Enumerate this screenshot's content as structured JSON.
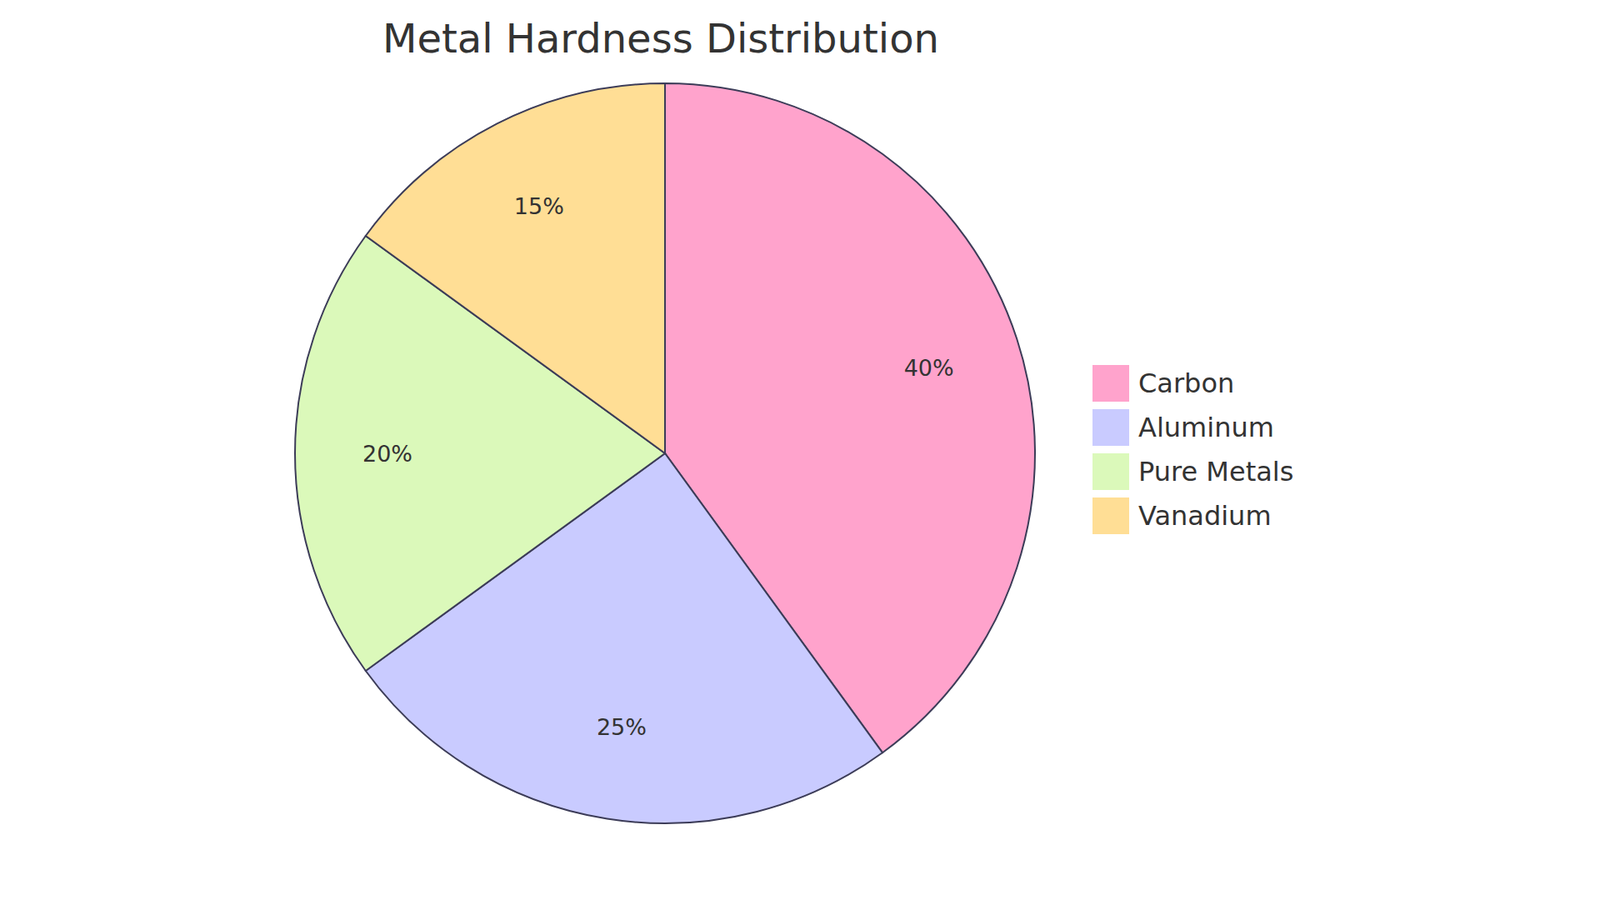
{
  "chart_data": {
    "type": "pie",
    "title": "Metal Hardness Distribution",
    "categories": [
      "Carbon",
      "Aluminum",
      "Pure Metals",
      "Vanadium"
    ],
    "values": [
      40,
      25,
      20,
      15
    ],
    "value_labels": [
      "40%",
      "25%",
      "20%",
      "15%"
    ],
    "colors": [
      "#ffa3cc",
      "#c9cbff",
      "#dbf9ba",
      "#ffde95"
    ],
    "data_labels": true,
    "legend": "right"
  }
}
